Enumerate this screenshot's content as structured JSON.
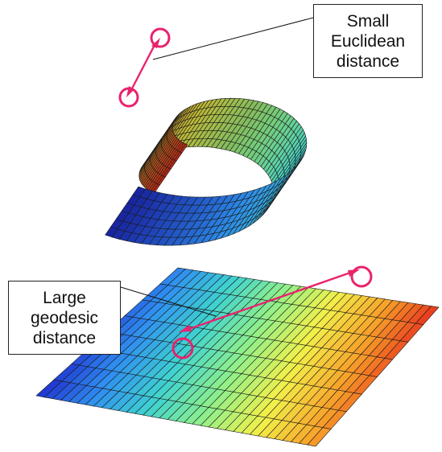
{
  "callouts": {
    "euclidean": {
      "lines": [
        "Small",
        "Euclidean",
        "distance"
      ]
    },
    "geodesic": {
      "lines": [
        "Large",
        "geodesic",
        "distance"
      ]
    }
  },
  "colors": {
    "highlight": "#e8236e",
    "mesh_line": "#1a1a1a",
    "colormap": [
      "#1f2ecf",
      "#2f8ff0",
      "#3fd2d0",
      "#8ff08a",
      "#f2f04a",
      "#f7a22a",
      "#e8301c"
    ]
  }
}
